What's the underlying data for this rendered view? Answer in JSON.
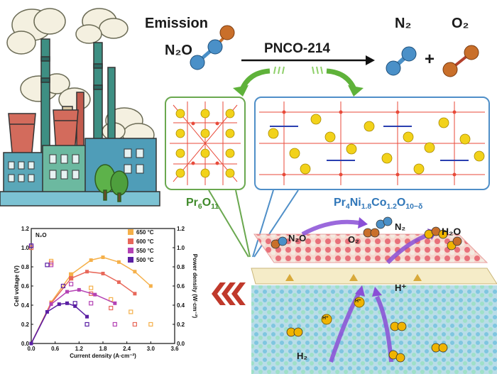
{
  "reaction": {
    "emission": "Emission",
    "reactant": "N₂O",
    "catalyst": "PNCO-214",
    "product1": "N₂",
    "product2": "O₂",
    "plus": "+"
  },
  "crystals": {
    "left": {
      "label_main": "Pr",
      "label_sub1": "6",
      "label_mid": "O",
      "label_sub2": "11"
    },
    "right": {
      "label_main": "Pr",
      "s1": "4",
      "n": "Ni",
      "s2": "1.8",
      "c": "Co",
      "s3": "1.2",
      "o": "O",
      "s4": "10−δ"
    }
  },
  "cell": {
    "n2o": "N₂O",
    "o2": "O₂",
    "n2": "N₂",
    "h2o": "H₂O",
    "hplus": "H⁺",
    "h2": "H₂",
    "hplus_small": "H⁺"
  },
  "colors": {
    "green": "#6aa84f",
    "blue": "#4f8fc8",
    "arrow_purple": "#8a4fd6",
    "chevron_red": "#c0392b"
  },
  "chart_data": {
    "type": "line",
    "annotation": "N₂O",
    "xlabel": "Current density (A·cm⁻²)",
    "ylabel": "Cell voltage (V)",
    "y2label": "Power density (W·cm⁻²)",
    "xlim": [
      0.0,
      3.6
    ],
    "ylim": [
      0.0,
      1.2
    ],
    "y2lim": [
      0.0,
      1.2
    ],
    "xticks": [
      "0.0",
      "0.6",
      "1.2",
      "1.8",
      "2.4",
      "3.0",
      "3.6"
    ],
    "yticks": [
      "0.0",
      "0.2",
      "0.4",
      "0.6",
      "0.8",
      "1.0",
      "1.2"
    ],
    "y2ticks": [
      "0.0",
      "0.2",
      "0.4",
      "0.6",
      "0.8",
      "1.0",
      "1.2"
    ],
    "legend_placement": "top-right",
    "series": [
      {
        "name": "650 °C",
        "color": "#f5b04a",
        "iv": [
          [
            0,
            1.0
          ],
          [
            0.5,
            0.86
          ],
          [
            1.0,
            0.72
          ],
          [
            1.5,
            0.58
          ],
          [
            2.0,
            0.46
          ],
          [
            2.5,
            0.33
          ],
          [
            3.0,
            0.2
          ]
        ],
        "power": [
          [
            0,
            0
          ],
          [
            0.5,
            0.43
          ],
          [
            1.0,
            0.72
          ],
          [
            1.5,
            0.87
          ],
          [
            1.8,
            0.9
          ],
          [
            2.2,
            0.85
          ],
          [
            2.6,
            0.75
          ],
          [
            3.0,
            0.6
          ]
        ]
      },
      {
        "name": "600 °C",
        "color": "#e8685a",
        "iv": [
          [
            0,
            1.0
          ],
          [
            0.5,
            0.84
          ],
          [
            1.0,
            0.68
          ],
          [
            1.5,
            0.52
          ],
          [
            2.0,
            0.37
          ],
          [
            2.6,
            0.2
          ]
        ],
        "power": [
          [
            0,
            0
          ],
          [
            0.5,
            0.42
          ],
          [
            1.0,
            0.68
          ],
          [
            1.4,
            0.75
          ],
          [
            1.8,
            0.73
          ],
          [
            2.2,
            0.64
          ],
          [
            2.6,
            0.52
          ]
        ]
      },
      {
        "name": "550 °C",
        "color": "#b442b4",
        "iv": [
          [
            0,
            1.02
          ],
          [
            0.5,
            0.82
          ],
          [
            1.0,
            0.62
          ],
          [
            1.5,
            0.42
          ],
          [
            2.1,
            0.2
          ]
        ],
        "power": [
          [
            0,
            0
          ],
          [
            0.5,
            0.41
          ],
          [
            0.9,
            0.54
          ],
          [
            1.2,
            0.56
          ],
          [
            1.6,
            0.51
          ],
          [
            2.1,
            0.42
          ]
        ]
      },
      {
        "name": "500 °C",
        "color": "#5a1fa3",
        "iv": [
          [
            0,
            1.02
          ],
          [
            0.4,
            0.82
          ],
          [
            0.8,
            0.6
          ],
          [
            1.1,
            0.42
          ],
          [
            1.4,
            0.2
          ]
        ],
        "power": [
          [
            0,
            0
          ],
          [
            0.4,
            0.33
          ],
          [
            0.7,
            0.41
          ],
          [
            0.9,
            0.42
          ],
          [
            1.1,
            0.39
          ],
          [
            1.4,
            0.28
          ]
        ]
      }
    ]
  }
}
